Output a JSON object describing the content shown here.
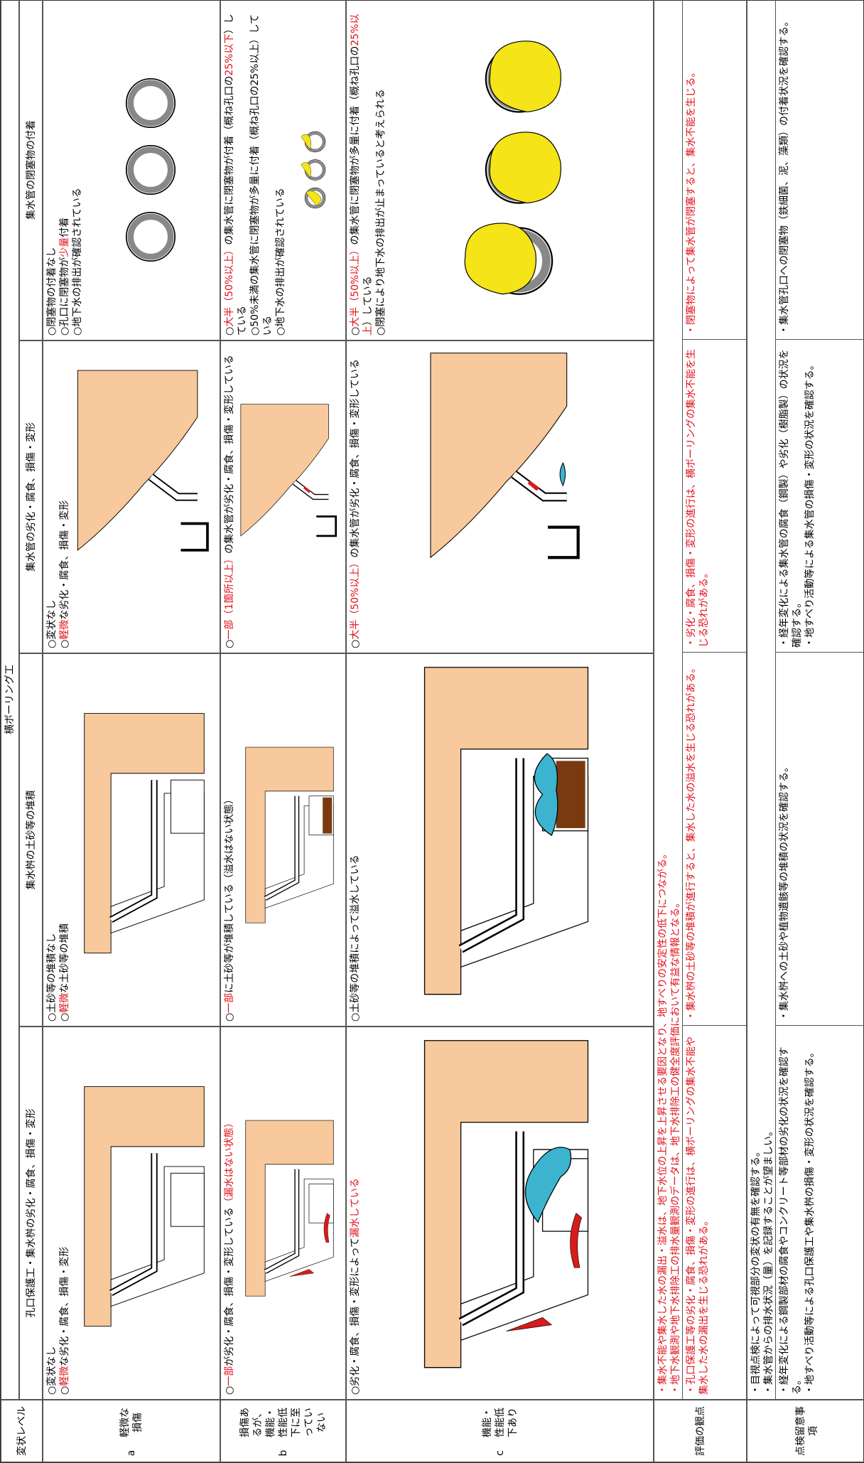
{
  "header": {
    "level_label": "変状レベル",
    "group": "横ボーリング工",
    "columns": [
      "孔口保護工・集水桝の劣化・腐食、損傷・変形",
      "集水桝の土砂等の堆積",
      "集水管の劣化・腐食、損傷・変形",
      "集水管の閉塞物の付着"
    ]
  },
  "rows": [
    {
      "level": "a",
      "description": "軽微な損傷",
      "cells": [
        [
          "○変状なし",
          [
            "○",
            {
              "text": "軽微",
              "color": "#e0101a"
            },
            "な劣化・腐食、損傷・変形"
          ]
        ],
        [
          "○土砂等の堆積なし",
          [
            "○",
            {
              "text": "軽微",
              "color": "#e0101a"
            },
            "な土砂等の堆積"
          ]
        ],
        [
          "○変状なし",
          [
            "○",
            {
              "text": "軽微",
              "color": "#e0101a"
            },
            "な劣化・腐食、損傷・変形"
          ]
        ],
        [
          "○閉塞物の付着なし",
          [
            "○孔口に閉塞物が",
            {
              "text": "少量",
              "color": "#e0101a"
            },
            "付着"
          ],
          "○地下水の排出が確認されている"
        ]
      ]
    },
    {
      "level": "b",
      "description": "損傷あるが、機能・性能低下に至っていない",
      "cells": [
        [
          [
            "○",
            {
              "text": "一部",
              "color": "#e0101a"
            },
            "が劣化・腐食、損傷・変形している",
            {
              "text": "（漏水はない状態）",
              "color": "#e0101a"
            }
          ]
        ],
        [
          [
            "○",
            {
              "text": "一部",
              "color": "#e0101a"
            },
            "に土砂等が堆積している（溢水はない状態）"
          ]
        ],
        [
          [
            "○",
            {
              "text": "一部（1箇所以上）",
              "color": "#e0101a"
            },
            "の集水管が劣化・腐食、損傷・変形している"
          ]
        ],
        [
          [
            "○",
            {
              "text": "大半（50%以上）",
              "color": "#e0101a"
            },
            "の集水管に閉塞物が付着（概ね孔口の",
            {
              "text": "25%以下",
              "color": "#e0101a"
            },
            "）している"
          ],
          "○50%未満の集水管に閉塞物が多量に付着（概ね孔口の25%以上）している",
          "○地下水の排出が確認されている"
        ]
      ]
    },
    {
      "level": "c",
      "description": "機能・性能低下あり",
      "cells": [
        [
          [
            "○劣化・腐食、損傷・変形によって",
            {
              "text": "漏水している",
              "color": "#e0101a"
            }
          ]
        ],
        [
          "○土砂等の堆積によって溢水している"
        ],
        [
          [
            "○",
            {
              "text": "大半（50%以上）",
              "color": "#e0101a"
            },
            "の集水管が劣化・腐食、損傷・変形している"
          ]
        ],
        [
          [
            "○",
            {
              "text": "大半（50%以上）",
              "color": "#e0101a"
            },
            "の集水管に閉塞物が多量に付着（概ね孔口の",
            {
              "text": "25%以上",
              "color": "#e0101a"
            },
            "）している"
          ],
          "○閉塞により地下水の排出が止まっていると考えられる"
        ]
      ]
    }
  ],
  "evaluation": {
    "label": "評価の観点",
    "common": [
      {
        "text": "・集水不能や集水した水の漏出・溢水は、地下水位の上昇を上昇させる要因となり、地すべりの安定性の低下につながる。",
        "color": "#e0101a"
      },
      {
        "text": "・地下水観測や地下水排除工の排水量観測のデータは、地下水排除工の健全度評価において有益な情報となる。",
        "color": "#e0101a"
      }
    ],
    "columns": [
      [
        {
          "text": "・孔口保護工等の劣化・腐食、損傷・変形の進行は、横ボーリングの集水不能や集水した水の漏出を生じる恐れがある。",
          "color": "#e0101a"
        }
      ],
      [
        {
          "text": "・集水桝の土砂等の堆積が進行すると、集水した水の溢水を生じる恐れがある。",
          "color": "#e0101a"
        }
      ],
      [
        {
          "text": "・劣化・腐食、損傷・変形の進行は、横ボーリングの集水不能を生じる恐れがある。",
          "color": "#e0101a"
        }
      ],
      [
        {
          "text": "・閉塞物によって集水管が閉塞すると、集水不能を生じる。",
          "color": "#e0101a"
        }
      ]
    ]
  },
  "inspection": {
    "label": "点検留意事項",
    "common": [
      "・目視点検によって可視部分の変状の有無を確認する。",
      "・集水管からの排水状況（量）を記録することが望ましい。"
    ],
    "columns": [
      [
        "・経年変化による鋼製部材の腐食やコンクリート等部材の劣化の状況を確認する。",
        "・地すべり活動等による孔口保護工や集水桝の損傷・変形の状況を確認する。"
      ],
      [
        "・集水桝への土砂や植物遺骸等の堆積の状況を確認する。"
      ],
      [
        "・経年変化による集水管の腐食（鋼製）や劣化（樹脂製）の状況を確認する。",
        "・地すべり活動等による集水管の損傷・変形の状況を確認する。"
      ],
      [
        "・集水管孔口への閉塞物（鉄細菌、泥、藻類）の付着状況を確認する。"
      ]
    ]
  }
}
